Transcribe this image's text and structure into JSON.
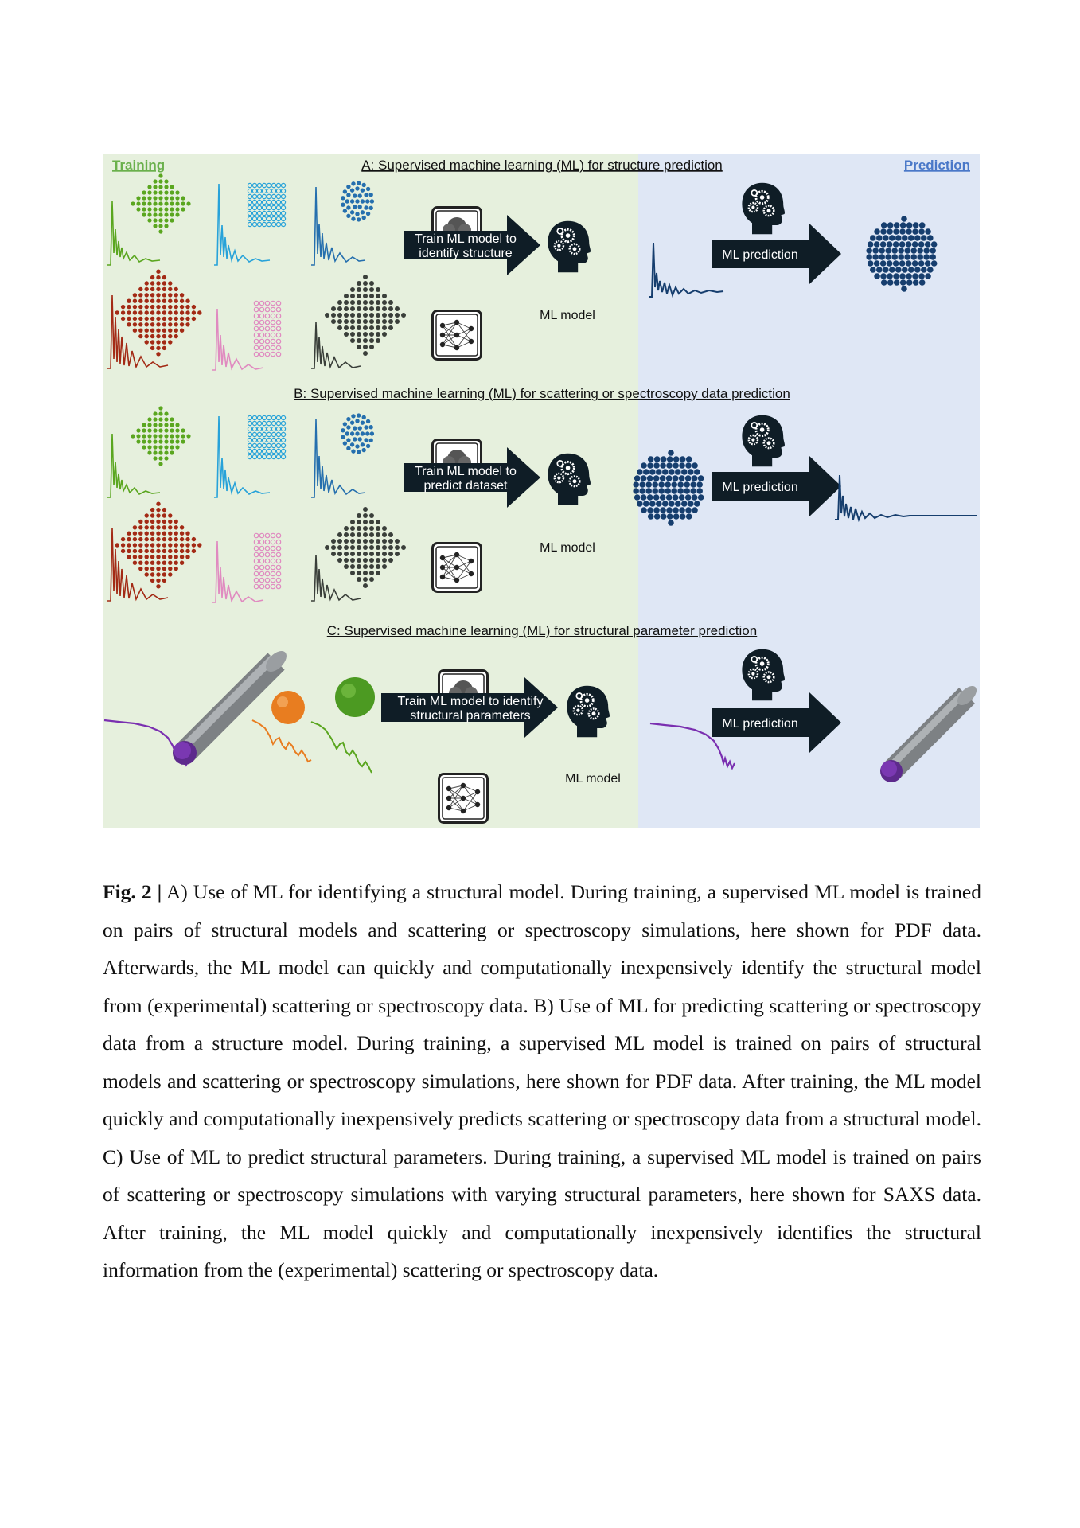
{
  "figure": {
    "header": {
      "training": "Training",
      "prediction": "Prediction",
      "colors": {
        "training": "#6ab04c",
        "prediction": "#4a78c8"
      }
    },
    "panels": [
      {
        "title": "A: Supervised machine learning (ML) for structure prediction",
        "train_line1": "Train ML model to",
        "train_line2": "identify structure",
        "model_label": "ML model",
        "predict_label": "ML prediction"
      },
      {
        "title": "B: Supervised machine learning (ML) for scattering or spectroscopy data prediction",
        "train_line1": "Train ML model to",
        "train_line2": "predict dataset",
        "model_label": "ML model",
        "predict_label": "ML prediction"
      },
      {
        "title": "C: Supervised machine learning (ML) for structural parameter prediction",
        "train_line1": "Train ML model to identify",
        "train_line2": "structural parameters",
        "model_label": "ML model",
        "predict_label": "ML prediction"
      }
    ],
    "colors": {
      "training_bg": "#e6f0dd",
      "prediction_bg": "#dfe7f5",
      "arrow": "#0f1d26",
      "green": "#5aa61f",
      "light_blue": "#27a2d9",
      "blue": "#256fae",
      "red": "#a32a15",
      "pink": "#e08ac0",
      "dark": "#3a3f3a",
      "navy": "#163e6e",
      "purple": "#7a2fb0",
      "orange": "#e87d20"
    }
  },
  "caption": {
    "label": "Fig. 2 |",
    "text": " A) Use of ML for identifying a structural model. During training, a supervised ML model is trained on pairs of structural models and scattering or spectroscopy simulations, here shown for PDF data. Afterwards, the ML model can quickly and computationally inexpensively identify the structural model from (experimental) scattering or spectroscopy data. B) Use of ML for predicting scattering or spectroscopy data from a structure model. During training, a supervised ML model is trained on pairs of structural models and scattering or spectroscopy simulations, here shown for PDF data. After training, the ML model quickly and computationally inexpensively predicts scattering or spectroscopy data from a structural model. C) Use of ML to predict structural parameters. During training, a supervised ML model is trained on pairs of scattering or spectroscopy simulations with varying structural parameters, here shown for SAXS data. After training, the ML model quickly and computationally inexpensively identifies the structural information from the (experimental) scattering or spectroscopy data."
  }
}
